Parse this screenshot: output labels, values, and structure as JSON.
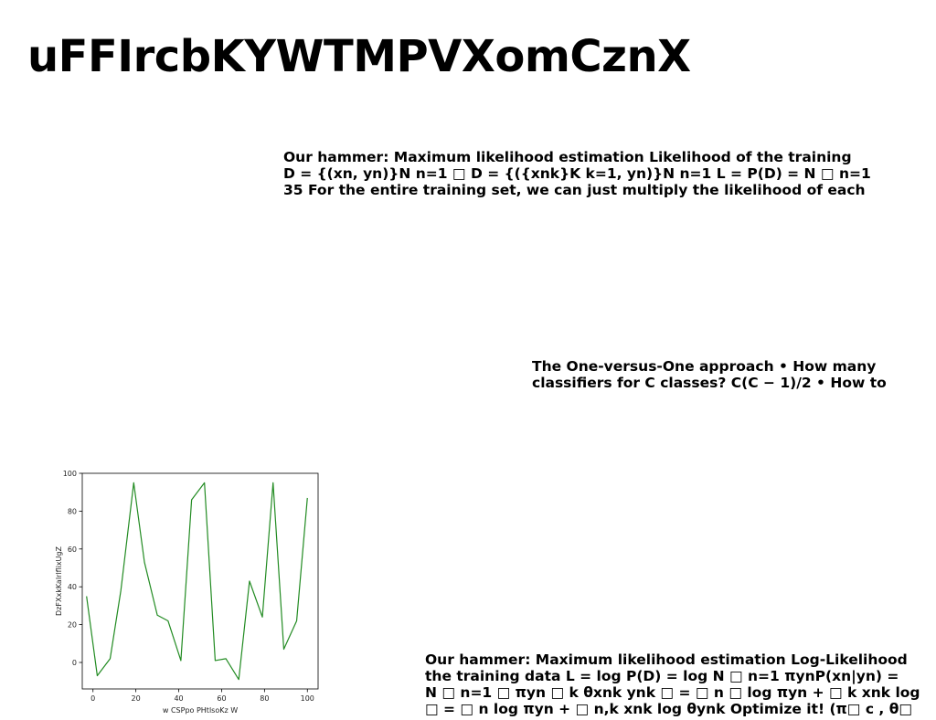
{
  "page": {
    "title": "uFFIrcbKYWTMPVXomCznX"
  },
  "text_blocks": [
    {
      "lines": [
        "Our hammer: Maximum likelihood estimation Likelihood of the training",
        "D = {(xn, yn)}N n=1 □ D = {({xnk}K k=1, yn)}N n=1 L = P(D) = N □ n=1",
        "35 For the entire training set, we can just multiply the likelihood of each"
      ]
    },
    {
      "lines": [
        "The One-versus-One approach • How many",
        "classifiers for C classes? C(C − 1)/2 • How to"
      ]
    },
    {
      "lines": [
        "Our hammer: Maximum likelihood estimation Log-Likelihood",
        "the training data L = log P(D) = log N □ n=1 πynP(xn|yn) =",
        "N □ n=1 □ πyn □ k θxnk ynk □ = □ n □ log πyn + □ k xnk log",
        "□ = □ n log πyn + □ n,k xnk log θynk Optimize it! (π□ c , θ□"
      ]
    }
  ],
  "chart_data": {
    "type": "line",
    "title": "",
    "xlabel": "w CSPpo PHtlsoKz W",
    "ylabel": "DzFXxkKalrlflixUgZ",
    "xlim": [
      -5,
      105
    ],
    "ylim": [
      -14,
      100
    ],
    "x_ticks": [
      0,
      20,
      40,
      60,
      80,
      100
    ],
    "y_ticks": [
      0,
      20,
      40,
      60,
      80,
      100
    ],
    "grid": false,
    "color": "#228b22",
    "series": [
      {
        "x": [
          -3,
          2,
          8,
          13,
          19,
          24,
          30,
          35,
          41,
          46,
          52,
          57,
          62,
          68,
          73,
          79,
          84,
          89,
          95,
          100
        ],
        "y": [
          35,
          -7,
          2,
          38,
          95,
          53,
          25,
          22,
          1,
          86,
          95,
          1,
          2,
          -9,
          43,
          24,
          95,
          7,
          22,
          87
        ]
      }
    ]
  }
}
